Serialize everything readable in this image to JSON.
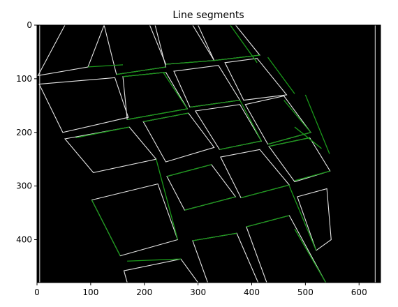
{
  "chart_data": {
    "type": "image",
    "title": "Line segments",
    "xlabel": "",
    "ylabel": "",
    "xlim": [
      0,
      640
    ],
    "ylim": [
      480,
      0
    ],
    "x_ticks": [
      0,
      100,
      200,
      300,
      400,
      500,
      600
    ],
    "y_ticks": [
      0,
      100,
      200,
      300,
      400
    ],
    "background_color": "#000000",
    "edge_color": "#e6e6e6",
    "segment_color": "#1a9a1a",
    "grid": false,
    "tile_rows": [
      [
        [
          [
            2,
            94
          ],
          [
            95,
            78
          ],
          [
            125,
            0
          ],
          [
            52,
            0
          ]
        ],
        [
          [
            148,
            92
          ],
          [
            240,
            78
          ],
          [
            220,
            0
          ],
          [
            125,
            0
          ]
        ],
        [
          [
            240,
            73
          ],
          [
            330,
            66
          ],
          [
            290,
            0
          ],
          [
            210,
            0
          ]
        ],
        [
          [
            330,
            66
          ],
          [
            415,
            56
          ],
          [
            370,
            0
          ],
          [
            300,
            0
          ]
        ]
      ],
      [
        [
          [
            4,
            110
          ],
          [
            145,
            98
          ],
          [
            170,
            172
          ],
          [
            48,
            200
          ]
        ],
        [
          [
            160,
            96
          ],
          [
            240,
            88
          ],
          [
            280,
            156
          ],
          [
            168,
            176
          ]
        ],
        [
          [
            255,
            86
          ],
          [
            338,
            75
          ],
          [
            378,
            140
          ],
          [
            285,
            153
          ]
        ],
        [
          [
            350,
            70
          ],
          [
            410,
            62
          ],
          [
            465,
            130
          ],
          [
            385,
            140
          ]
        ]
      ],
      [
        [
          [
            52,
            212
          ],
          [
            172,
            190
          ],
          [
            222,
            250
          ],
          [
            105,
            275
          ]
        ],
        [
          [
            198,
            180
          ],
          [
            282,
            164
          ],
          [
            330,
            228
          ],
          [
            240,
            255
          ]
        ],
        [
          [
            295,
            160
          ],
          [
            378,
            148
          ],
          [
            418,
            216
          ],
          [
            340,
            232
          ]
        ],
        [
          [
            388,
            148
          ],
          [
            460,
            132
          ],
          [
            510,
            200
          ],
          [
            430,
            222
          ]
        ]
      ],
      [
        [
          [
            102,
            326
          ],
          [
            225,
            296
          ],
          [
            262,
            400
          ],
          [
            155,
            430
          ]
        ],
        [
          [
            242,
            282
          ],
          [
            325,
            260
          ],
          [
            370,
            320
          ],
          [
            275,
            345
          ]
        ],
        [
          [
            342,
            246
          ],
          [
            415,
            232
          ],
          [
            470,
            298
          ],
          [
            380,
            322
          ]
        ],
        [
          [
            432,
            226
          ],
          [
            508,
            210
          ],
          [
            546,
            272
          ],
          [
            480,
            292
          ]
        ]
      ],
      [
        [
          [
            162,
            458
          ],
          [
            268,
            436
          ],
          [
            300,
            480
          ],
          [
            168,
            480
          ]
        ],
        [
          [
            290,
            402
          ],
          [
            372,
            388
          ],
          [
            412,
            480
          ],
          [
            318,
            480
          ]
        ],
        [
          [
            390,
            376
          ],
          [
            470,
            355
          ],
          [
            538,
            480
          ],
          [
            428,
            480
          ]
        ],
        [
          [
            485,
            320
          ],
          [
            540,
            305
          ],
          [
            548,
            400
          ],
          [
            520,
            420
          ]
        ]
      ]
    ],
    "green_segments": [
      [
        [
          95,
          78
        ],
        [
          160,
          74
        ]
      ],
      [
        [
          148,
          92
        ],
        [
          240,
          78
        ]
      ],
      [
        [
          240,
          73
        ],
        [
          330,
          66
        ]
      ],
      [
        [
          330,
          66
        ],
        [
          415,
          56
        ]
      ],
      [
        [
          360,
          0
        ],
        [
          410,
          70
        ]
      ],
      [
        [
          430,
          60
        ],
        [
          480,
          128
        ]
      ],
      [
        [
          460,
          140
        ],
        [
          510,
          200
        ]
      ],
      [
        [
          480,
          190
        ],
        [
          530,
          230
        ]
      ],
      [
        [
          160,
          96
        ],
        [
          240,
          88
        ]
      ],
      [
        [
          235,
          88
        ],
        [
          280,
          156
        ]
      ],
      [
        [
          168,
          176
        ],
        [
          280,
          156
        ]
      ],
      [
        [
          285,
          153
        ],
        [
          378,
          140
        ]
      ],
      [
        [
          72,
          210
        ],
        [
          172,
          190
        ]
      ],
      [
        [
          198,
          180
        ],
        [
          282,
          164
        ]
      ],
      [
        [
          378,
          140
        ],
        [
          418,
          216
        ]
      ],
      [
        [
          340,
          232
        ],
        [
          418,
          216
        ]
      ],
      [
        [
          430,
          222
        ],
        [
          510,
          200
        ]
      ],
      [
        [
          222,
          250
        ],
        [
          262,
          400
        ]
      ],
      [
        [
          242,
          282
        ],
        [
          325,
          260
        ]
      ],
      [
        [
          275,
          345
        ],
        [
          370,
          320
        ]
      ],
      [
        [
          380,
          322
        ],
        [
          470,
          298
        ]
      ],
      [
        [
          432,
          226
        ],
        [
          508,
          210
        ]
      ],
      [
        [
          480,
          290
        ],
        [
          546,
          272
        ]
      ],
      [
        [
          102,
          326
        ],
        [
          155,
          430
        ]
      ],
      [
        [
          168,
          440
        ],
        [
          268,
          436
        ]
      ],
      [
        [
          290,
          402
        ],
        [
          372,
          388
        ]
      ],
      [
        [
          390,
          376
        ],
        [
          470,
          355
        ]
      ],
      [
        [
          480,
          380
        ],
        [
          538,
          480
        ]
      ],
      [
        [
          500,
          130
        ],
        [
          545,
          240
        ]
      ],
      [
        [
          470,
          300
        ],
        [
          520,
          420
        ]
      ]
    ]
  }
}
